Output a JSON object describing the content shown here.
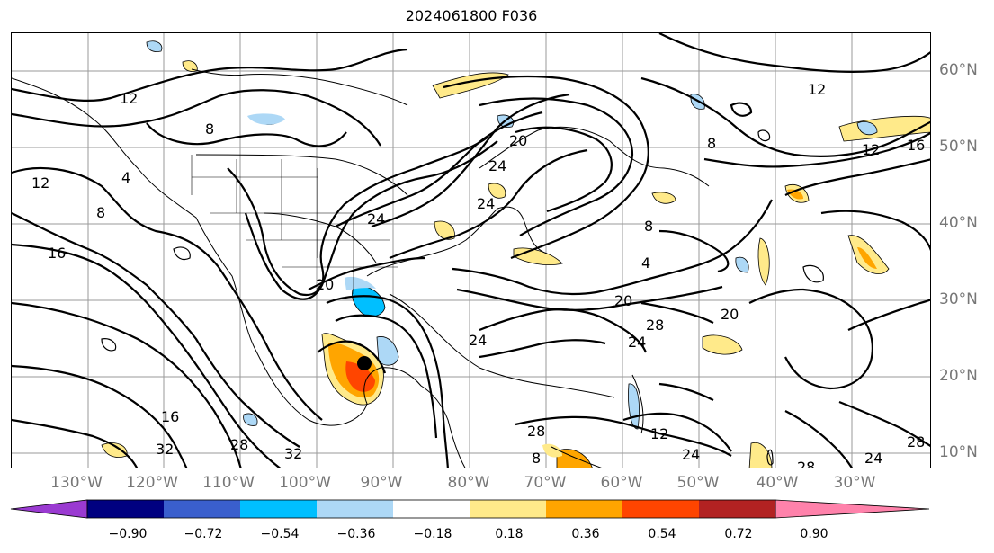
{
  "title": "2024061800 F036",
  "lon_labels": [
    "130°W",
    "120°W",
    "110°W",
    "100°W",
    "90°W",
    "80°W",
    "70°W",
    "60°W",
    "50°W",
    "40°W",
    "30°W"
  ],
  "lat_labels": [
    "60°N",
    "50°N",
    "40°N",
    "30°N",
    "20°N",
    "10°N"
  ],
  "contour_labels": [
    "12",
    "8",
    "4",
    "12",
    "16",
    "8",
    "24",
    "20",
    "24",
    "24",
    "20",
    "24",
    "28",
    "24",
    "20",
    "12",
    "12",
    "8",
    "16",
    "4",
    "8",
    "24",
    "28",
    "32",
    "16",
    "12",
    "8",
    "28",
    "24",
    "28",
    "32",
    "28",
    "20"
  ],
  "colorbar": {
    "ticks": [
      "−0.90",
      "−0.72",
      "−0.54",
      "−0.36",
      "−0.18",
      "0.18",
      "0.36",
      "0.54",
      "0.72",
      "0.90"
    ],
    "colors": [
      "#9a3ad1",
      "#000080",
      "#3a5fcd",
      "#00bfff",
      "#add8f6",
      "#ffffff",
      "#ffea8a",
      "#ffa500",
      "#ff4500",
      "#b22222",
      "#ff82ab"
    ]
  },
  "colors": {
    "warm_light": "#ffea8a",
    "warm": "#ffa500",
    "hot": "#ff4500",
    "cool_light": "#add8f6",
    "cool": "#00bfff"
  }
}
